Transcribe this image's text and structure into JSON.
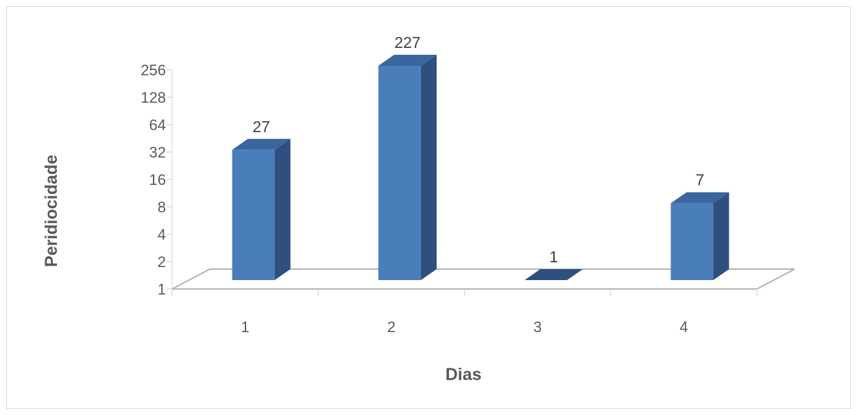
{
  "chart_data": {
    "type": "bar",
    "style": "3d-column",
    "categories": [
      "1",
      "2",
      "3",
      "4"
    ],
    "values": [
      27,
      227,
      1,
      7
    ],
    "data_labels": [
      "27",
      "227",
      "1",
      "7"
    ],
    "xlabel": "Dias",
    "ylabel": "Peridiocidade",
    "y_scale": "log2",
    "ylim": [
      1,
      256
    ],
    "y_ticks": [
      1,
      2,
      4,
      8,
      16,
      32,
      64,
      128,
      256
    ],
    "y_tick_labels": [
      "1",
      "2",
      "4",
      "8",
      "16",
      "32",
      "64",
      "128",
      "256"
    ],
    "grid": false,
    "legend": "none",
    "colors": {
      "bar_front": "#4a7ebb",
      "bar_side": "#2f4f7f",
      "bar_top": "#3a66a0",
      "floor_line": "#b3b3b3",
      "text": "#595959"
    }
  }
}
